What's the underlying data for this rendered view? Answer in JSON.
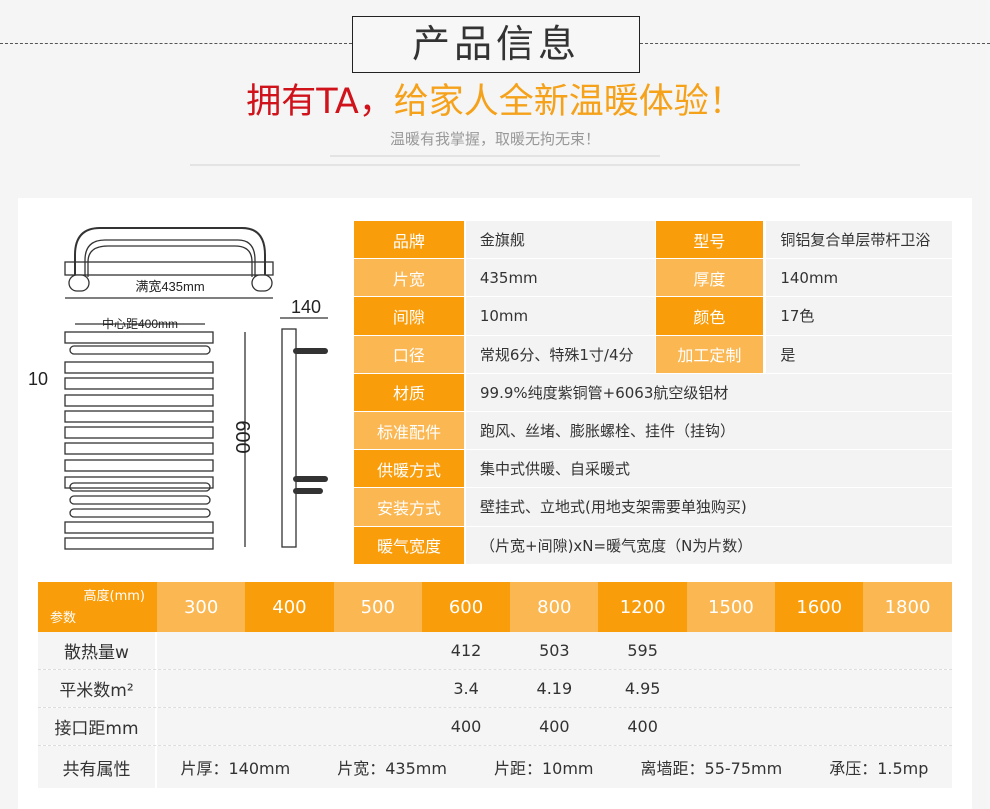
{
  "header": {
    "title": "产品信息",
    "slogan_red": "拥有TA，",
    "slogan_orange": "给家人全新温暖体验！",
    "subtitle": "温暖有我掌握，取暖无拘无束！"
  },
  "colors": {
    "orange_dark": "#fa9d0b",
    "orange_light": "#fbb752",
    "slogan_red": "#d0121b",
    "slogan_orange": "#f5a11a"
  },
  "diagram": {
    "full_width": "满宽435mm",
    "center_distance": "中心距400mm",
    "gap": "10",
    "height": "600",
    "depth": "140"
  },
  "specs": {
    "rows": [
      {
        "label": "品牌",
        "value": "金旗舰",
        "label2": "型号",
        "value2": "铜铝复合单层带杆卫浴"
      },
      {
        "label": "片宽",
        "value": "435mm",
        "label2": "厚度",
        "value2": "140mm"
      },
      {
        "label": "间隙",
        "value": "10mm",
        "label2": "颜色",
        "value2": "17色"
      },
      {
        "label": "口径",
        "value": "常规6分、特殊1寸/4分",
        "label2": "加工定制",
        "value2": "是"
      },
      {
        "label": "材质",
        "value": "99.9%纯度紫铜管+6063航空级铝材"
      },
      {
        "label": "标准配件",
        "value": "跑风、丝堵、膨胀螺栓、挂件（挂钩）"
      },
      {
        "label": "供暖方式",
        "value": "集中式供暖、自采暖式"
      },
      {
        "label": "安装方式",
        "value": "壁挂式、立地式(用地支架需要单独购买)"
      },
      {
        "label": "暖气宽度",
        "value": "（片宽+间隙)xN=暖气宽度（N为片数）"
      }
    ]
  },
  "params": {
    "corner_top": "高度(mm)",
    "corner_bottom": "参数",
    "heights": [
      "300",
      "400",
      "500",
      "600",
      "800",
      "1200",
      "1500",
      "1600",
      "1800"
    ],
    "rows": [
      {
        "label": "散热量w",
        "values": [
          "",
          "",
          "",
          "412",
          "503",
          "595",
          "",
          "",
          ""
        ]
      },
      {
        "label": "平米数m²",
        "values": [
          "",
          "",
          "",
          "3.4",
          "4.19",
          "4.95",
          "",
          "",
          ""
        ]
      },
      {
        "label": "接口距mm",
        "values": [
          "",
          "",
          "",
          "400",
          "400",
          "400",
          "",
          "",
          ""
        ]
      }
    ],
    "common_label": "共有属性",
    "common": [
      "片厚：140mm",
      "片宽：435mm",
      "片距：10mm",
      "离墙距：55-75mm",
      "承压：1.5mp"
    ]
  }
}
